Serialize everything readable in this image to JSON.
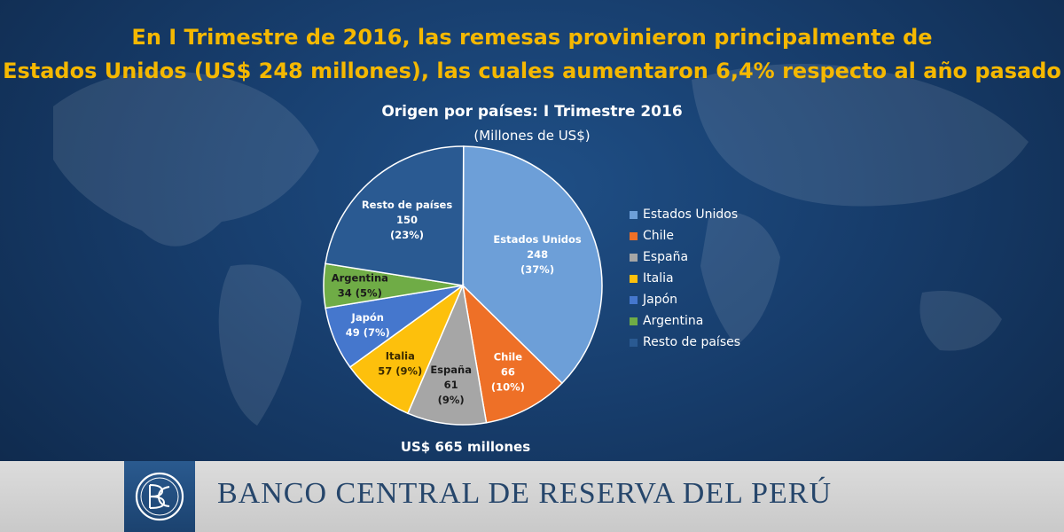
{
  "headline": {
    "line1": "En I Trimestre de 2016, las remesas provinieron principalmente de",
    "line2": "Estados Unidos (US$ 248 millones), las cuales aumentaron 6,4% respecto al año pasado"
  },
  "chart_data": {
    "type": "pie",
    "title": "Origen por países: I Trimestre 2016",
    "subtitle": "(Millones de US$)",
    "total_label": "US$ 665 millones",
    "legend_position": "right",
    "slices": [
      {
        "name": "Estados Unidos",
        "value": 248,
        "percent": "37%",
        "color": "#6d9fd8",
        "label_lines": [
          "Estados Unidos",
          "248",
          "(37%)"
        ]
      },
      {
        "name": "Chile",
        "value": 66,
        "percent": "10%",
        "color": "#ee7027",
        "label_lines": [
          "Chile",
          "66",
          "(10%)"
        ]
      },
      {
        "name": "España",
        "value": 61,
        "percent": "9%",
        "color": "#a6a6a6",
        "label_lines": [
          "España",
          "61",
          "(9%)"
        ]
      },
      {
        "name": "Italia",
        "value": 57,
        "percent": "9%",
        "color": "#fdc00c",
        "label_lines": [
          "Italia",
          "57 (9%)"
        ]
      },
      {
        "name": "Japón",
        "value": 49,
        "percent": "7%",
        "color": "#4577cd",
        "label_lines": [
          "Japón",
          "49 (7%)"
        ]
      },
      {
        "name": "Argentina",
        "value": 34,
        "percent": "5%",
        "color": "#6fac46",
        "label_lines": [
          "Argentina",
          "34 (5%)"
        ]
      },
      {
        "name": "Resto de países",
        "value": 150,
        "percent": "23%",
        "color": "#2a5a92",
        "label_lines": [
          "Resto de países",
          "150",
          "(23%)"
        ]
      }
    ]
  },
  "footer": {
    "bank_name": "BANCO CENTRAL DE RESERVA DEL PERÚ",
    "logo_icon": "bcrp-monogram-icon"
  }
}
